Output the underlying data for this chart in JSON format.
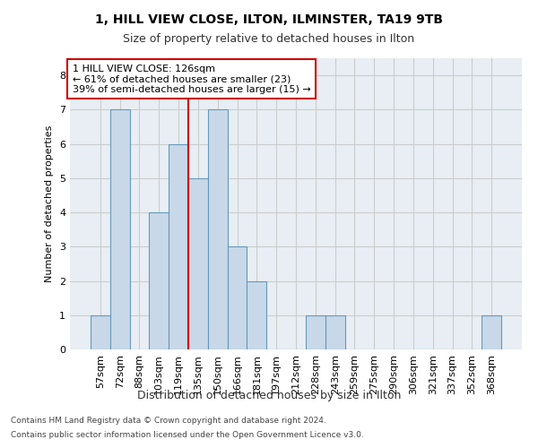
{
  "title": "1, HILL VIEW CLOSE, ILTON, ILMINSTER, TA19 9TB",
  "subtitle": "Size of property relative to detached houses in Ilton",
  "xlabel": "Distribution of detached houses by size in Ilton",
  "ylabel": "Number of detached properties",
  "footnote1": "Contains HM Land Registry data © Crown copyright and database right 2024.",
  "footnote2": "Contains public sector information licensed under the Open Government Licence v3.0.",
  "categories": [
    "57sqm",
    "72sqm",
    "88sqm",
    "103sqm",
    "119sqm",
    "135sqm",
    "150sqm",
    "166sqm",
    "181sqm",
    "197sqm",
    "212sqm",
    "228sqm",
    "243sqm",
    "259sqm",
    "275sqm",
    "290sqm",
    "306sqm",
    "321sqm",
    "337sqm",
    "352sqm",
    "368sqm"
  ],
  "values": [
    1,
    7,
    0,
    4,
    6,
    5,
    7,
    3,
    2,
    0,
    0,
    1,
    1,
    0,
    0,
    0,
    0,
    0,
    0,
    0,
    1
  ],
  "bar_color": "#c8d8e8",
  "bar_edge_color": "#6699bb",
  "vline_x": 4.5,
  "vline_color": "#cc0000",
  "annotation_text": "1 HILL VIEW CLOSE: 126sqm\n← 61% of detached houses are smaller (23)\n39% of semi-detached houses are larger (15) →",
  "annotation_box_color": "#ffffff",
  "annotation_box_edge": "#cc0000",
  "ylim": [
    0,
    8.5
  ],
  "yticks": [
    0,
    1,
    2,
    3,
    4,
    5,
    6,
    7,
    8
  ],
  "grid_color": "#cccccc",
  "background_color": "#e8eef4"
}
